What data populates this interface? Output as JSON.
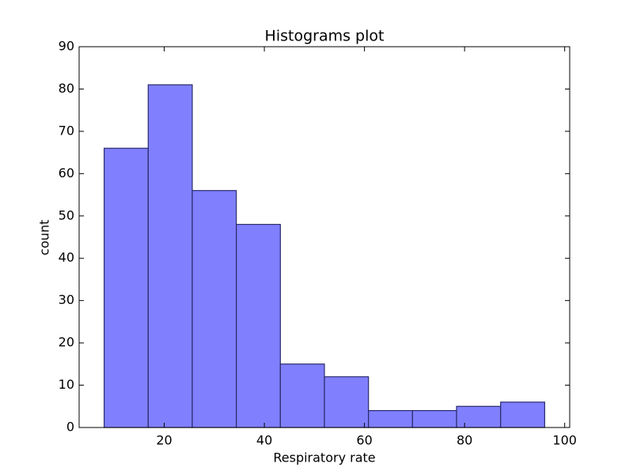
{
  "chart_data": {
    "type": "histogram",
    "title": "Histograms plot",
    "x_label": "Respiratory rate",
    "y_label": "count",
    "bins": [
      8,
      16.8,
      25.6,
      34.4,
      43.2,
      52,
      60.8,
      69.6,
      78.4,
      87.2,
      96
    ],
    "values": [
      66,
      81,
      56,
      48,
      15,
      12,
      4,
      4,
      5,
      6
    ],
    "color": "#8080ff",
    "edge_color": "#2a2a6a",
    "xlim": [
      3,
      101
    ],
    "xticks": [
      20,
      40,
      60,
      80,
      100
    ],
    "ylim": [
      0,
      90
    ],
    "yticks": [
      0,
      10,
      20,
      30,
      40,
      50,
      60,
      70,
      80,
      90
    ],
    "grid": false
  }
}
